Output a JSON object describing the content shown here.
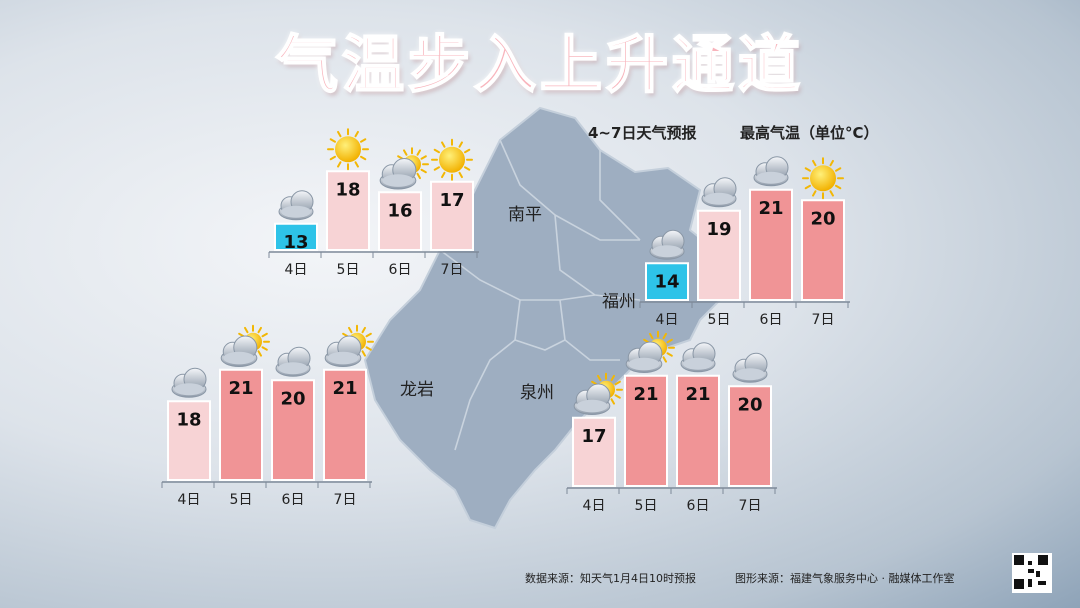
{
  "title": "气温步入上升通道",
  "subtitle_forecast": "4~7日天气预报",
  "subtitle_legend": "最高气温（单位°C）",
  "footer_source": "数据来源：知天气1月4日10时预报",
  "footer_graphic": "图形来源：福建气象服务中心 · 融媒体工作室",
  "cities": [
    "南平",
    "福州",
    "龙岩",
    "泉州"
  ],
  "colors": {
    "cold": "#2ec3e8",
    "mild": "#f7d3d5",
    "warm": "#f09496",
    "map": "#9eaec1"
  },
  "chart_data": [
    {
      "type": "bar",
      "city": "南平",
      "categories": [
        "4日",
        "5日",
        "6日",
        "7日"
      ],
      "values": [
        13,
        18,
        16,
        17
      ],
      "icons": [
        "cloud-icon",
        "sun-icon",
        "partly-sunny-icon",
        "sun-icon"
      ]
    },
    {
      "type": "bar",
      "city": "福州",
      "categories": [
        "4日",
        "5日",
        "6日",
        "7日"
      ],
      "values": [
        14,
        19,
        21,
        20
      ],
      "icons": [
        "cloud-icon",
        "cloud-icon",
        "cloud-icon",
        "sun-icon"
      ]
    },
    {
      "type": "bar",
      "city": "龙岩",
      "categories": [
        "4日",
        "5日",
        "6日",
        "7日"
      ],
      "values": [
        18,
        21,
        20,
        21
      ],
      "icons": [
        "cloud-icon",
        "partly-sunny-icon",
        "cloud-icon",
        "partly-sunny-icon"
      ]
    },
    {
      "type": "bar",
      "city": "泉州",
      "categories": [
        "4日",
        "5日",
        "6日",
        "7日"
      ],
      "values": [
        17,
        21,
        21,
        20
      ],
      "icons": [
        "partly-sunny-icon",
        "partly-sunny-icon",
        "cloud-icon",
        "cloud-icon"
      ]
    }
  ]
}
